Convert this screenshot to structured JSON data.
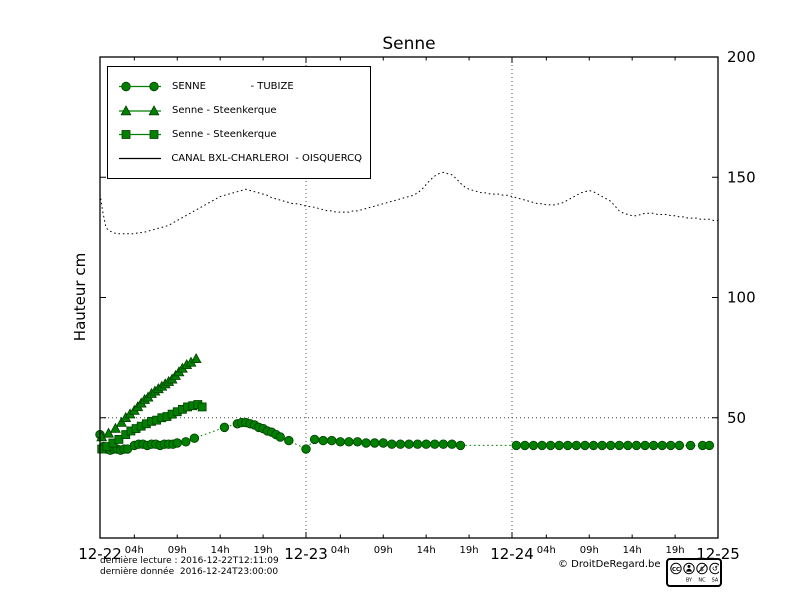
{
  "page": {
    "title": "Senne"
  },
  "chart_data": {
    "type": "line",
    "title": "Senne",
    "xlabel": "",
    "ylabel": "Hauteur cm",
    "x_unit": "hours since 2016-12-22 00:00",
    "xlim": [
      0,
      72
    ],
    "ylim": [
      0,
      200
    ],
    "y_ticks": {
      "values": [
        50,
        100,
        150,
        200
      ],
      "labels": [
        "50",
        "100",
        "150",
        "200"
      ]
    },
    "x_major_ticks": [
      {
        "pos": 0,
        "label": "12-22"
      },
      {
        "pos": 24,
        "label": "12-23"
      },
      {
        "pos": 48,
        "label": "12-24"
      },
      {
        "pos": 72,
        "label": "12-25"
      }
    ],
    "x_minor_ticks": [
      {
        "pos": 4,
        "label": "04h"
      },
      {
        "pos": 9,
        "label": "09h"
      },
      {
        "pos": 14,
        "label": "14h"
      },
      {
        "pos": 19,
        "label": "19h"
      },
      {
        "pos": 28,
        "label": "04h"
      },
      {
        "pos": 33,
        "label": "09h"
      },
      {
        "pos": 38,
        "label": "14h"
      },
      {
        "pos": 43,
        "label": "19h"
      },
      {
        "pos": 52,
        "label": "04h"
      },
      {
        "pos": 57,
        "label": "09h"
      },
      {
        "pos": 62,
        "label": "14h"
      },
      {
        "pos": 67,
        "label": "19h"
      }
    ],
    "grid": {
      "vlines": [
        24,
        48
      ],
      "hlines": [
        50
      ]
    },
    "series": [
      {
        "id": "senne-tubize",
        "name": "SENNE - TUBIZE",
        "marker": "circle",
        "linestyle": "dotted",
        "color": "#007f00",
        "edge": "#004000",
        "points": [
          [
            0,
            43
          ],
          [
            0.4,
            38
          ],
          [
            0.8,
            37
          ],
          [
            1.2,
            36.5
          ],
          [
            1.6,
            37
          ],
          [
            2,
            37
          ],
          [
            2.4,
            36.5
          ],
          [
            2.8,
            37
          ],
          [
            3.2,
            37
          ],
          [
            4,
            38.5
          ],
          [
            4.5,
            39
          ],
          [
            5,
            39
          ],
          [
            5.5,
            38.5
          ],
          [
            6,
            39
          ],
          [
            6.5,
            39
          ],
          [
            7,
            38.5
          ],
          [
            7.5,
            39
          ],
          [
            8,
            39
          ],
          [
            8.5,
            39
          ],
          [
            9,
            39.5
          ],
          [
            10,
            40
          ],
          [
            11,
            41.5
          ],
          [
            14.5,
            46
          ],
          [
            16,
            47.5
          ],
          [
            16.5,
            48
          ],
          [
            17,
            48
          ],
          [
            17.5,
            47.5
          ],
          [
            18,
            47
          ],
          [
            18.5,
            46
          ],
          [
            19,
            45.5
          ],
          [
            19.5,
            44.5
          ],
          [
            20,
            44
          ],
          [
            20.5,
            43
          ],
          [
            21,
            42
          ],
          [
            22,
            40.5
          ],
          [
            24,
            37
          ],
          [
            25,
            41
          ],
          [
            26,
            40.5
          ],
          [
            27,
            40.5
          ],
          [
            28,
            40
          ],
          [
            29,
            40
          ],
          [
            30,
            40
          ],
          [
            31,
            39.5
          ],
          [
            32,
            39.5
          ],
          [
            33,
            39.5
          ],
          [
            34,
            39
          ],
          [
            35,
            39
          ],
          [
            36,
            39
          ],
          [
            37,
            39
          ],
          [
            38,
            39
          ],
          [
            39,
            39
          ],
          [
            40,
            39
          ],
          [
            41,
            39
          ],
          [
            42,
            38.5
          ],
          [
            48.5,
            38.5
          ],
          [
            49.5,
            38.5
          ],
          [
            50.5,
            38.5
          ],
          [
            51.5,
            38.5
          ],
          [
            52.5,
            38.5
          ],
          [
            53.5,
            38.5
          ],
          [
            54.5,
            38.5
          ],
          [
            55.5,
            38.5
          ],
          [
            56.5,
            38.5
          ],
          [
            57.5,
            38.5
          ],
          [
            58.5,
            38.5
          ],
          [
            59.5,
            38.5
          ],
          [
            60.5,
            38.5
          ],
          [
            61.5,
            38.5
          ],
          [
            62.5,
            38.5
          ],
          [
            63.5,
            38.5
          ],
          [
            64.5,
            38.5
          ],
          [
            65.5,
            38.5
          ],
          [
            66.5,
            38.5
          ],
          [
            67.5,
            38.5
          ],
          [
            68.8,
            38.5
          ],
          [
            70.2,
            38.5
          ],
          [
            71,
            38.5
          ]
        ]
      },
      {
        "id": "senne-steenkerque-triangle",
        "name": "Senne - Steenkerque",
        "marker": "triangle",
        "linestyle": "solid",
        "color": "#007f00",
        "edge": "#004000",
        "points": [
          [
            0.2,
            42
          ],
          [
            1,
            43.5
          ],
          [
            1.8,
            45.5
          ],
          [
            2.5,
            48
          ],
          [
            3,
            50
          ],
          [
            3.5,
            51.5
          ],
          [
            4,
            53
          ],
          [
            4.4,
            54.5
          ],
          [
            4.8,
            56
          ],
          [
            5.2,
            57.5
          ],
          [
            5.6,
            58.5
          ],
          [
            6,
            60
          ],
          [
            6.4,
            61
          ],
          [
            6.8,
            62
          ],
          [
            7.2,
            63
          ],
          [
            7.6,
            64
          ],
          [
            8,
            65
          ],
          [
            8.4,
            66
          ],
          [
            8.8,
            67.5
          ],
          [
            9.2,
            69
          ],
          [
            9.6,
            70.5
          ],
          [
            10.1,
            72
          ],
          [
            10.6,
            73
          ],
          [
            11.2,
            74.5
          ]
        ]
      },
      {
        "id": "senne-steenkerque-square",
        "name": "Senne - Steenkerque",
        "marker": "square",
        "linestyle": "solid",
        "color": "#007f00",
        "edge": "#004000",
        "points": [
          [
            0.2,
            37
          ],
          [
            0.8,
            38
          ],
          [
            1.5,
            39.5
          ],
          [
            2.2,
            41
          ],
          [
            3,
            43
          ],
          [
            3.6,
            44.5
          ],
          [
            4.2,
            45.5
          ],
          [
            4.8,
            46.5
          ],
          [
            5.4,
            47.5
          ],
          [
            6,
            48.5
          ],
          [
            6.6,
            49
          ],
          [
            7.2,
            50
          ],
          [
            7.8,
            50.5
          ],
          [
            8.4,
            51.5
          ],
          [
            9,
            52.5
          ],
          [
            9.6,
            53.5
          ],
          [
            10.2,
            54.5
          ],
          [
            10.8,
            55
          ],
          [
            11.4,
            55.5
          ],
          [
            11.9,
            54.5
          ]
        ]
      },
      {
        "id": "canal-bxl-charleroi-oisquercq",
        "name": "CANAL BXL-CHARLEROI - OISQUERCQ",
        "marker": "none",
        "linestyle": "dotted",
        "color": "#000000",
        "edge": "#000000",
        "points": [
          [
            0,
            143
          ],
          [
            0.3,
            136
          ],
          [
            0.7,
            129
          ],
          [
            1,
            128
          ],
          [
            1.5,
            127
          ],
          [
            2,
            126.5
          ],
          [
            2.5,
            126.5
          ],
          [
            3,
            126.5
          ],
          [
            3.5,
            126.5
          ],
          [
            4,
            126.5
          ],
          [
            4.5,
            127
          ],
          [
            5,
            127
          ],
          [
            5.5,
            127.5
          ],
          [
            6,
            128
          ],
          [
            6.5,
            128.5
          ],
          [
            7,
            129
          ],
          [
            7.5,
            129.5
          ],
          [
            8,
            130
          ],
          [
            8.5,
            131
          ],
          [
            9,
            132
          ],
          [
            9.5,
            133
          ],
          [
            10,
            134
          ],
          [
            10.5,
            135
          ],
          [
            11,
            136
          ],
          [
            11.5,
            137
          ],
          [
            12,
            138
          ],
          [
            12.5,
            139
          ],
          [
            13,
            140
          ],
          [
            13.5,
            141
          ],
          [
            14,
            142
          ],
          [
            14.5,
            142.5
          ],
          [
            15,
            143
          ],
          [
            15.5,
            143.5
          ],
          [
            16,
            144
          ],
          [
            16.5,
            144.5
          ],
          [
            17,
            145
          ],
          [
            17.5,
            144.5
          ],
          [
            18,
            144
          ],
          [
            18.5,
            143.5
          ],
          [
            19,
            143
          ],
          [
            19.5,
            142.5
          ],
          [
            20,
            141.5
          ],
          [
            20.5,
            141
          ],
          [
            21,
            140.5
          ],
          [
            21.5,
            140
          ],
          [
            22,
            139.5
          ],
          [
            22.5,
            139
          ],
          [
            23,
            139
          ],
          [
            23.5,
            138.5
          ],
          [
            24,
            138
          ],
          [
            25,
            137.5
          ],
          [
            25.5,
            137
          ],
          [
            26,
            136.5
          ],
          [
            26.5,
            136
          ],
          [
            27,
            136
          ],
          [
            27.5,
            135.5
          ],
          [
            28,
            135.5
          ],
          [
            28.5,
            135.5
          ],
          [
            29,
            135.5
          ],
          [
            29.5,
            136
          ],
          [
            30,
            136
          ],
          [
            30.5,
            136.5
          ],
          [
            31,
            137
          ],
          [
            31.5,
            137.5
          ],
          [
            32,
            138
          ],
          [
            32.5,
            138.5
          ],
          [
            33,
            139
          ],
          [
            33.5,
            139.5
          ],
          [
            34,
            140
          ],
          [
            34.5,
            140.5
          ],
          [
            35,
            141
          ],
          [
            35.5,
            141.5
          ],
          [
            36,
            142
          ],
          [
            36.5,
            142.5
          ],
          [
            37,
            143.5
          ],
          [
            37.5,
            145
          ],
          [
            38,
            147
          ],
          [
            38.5,
            149
          ],
          [
            39,
            150.5
          ],
          [
            39.5,
            151.5
          ],
          [
            40,
            152
          ],
          [
            40.5,
            151.5
          ],
          [
            41,
            151
          ],
          [
            41.5,
            149.5
          ],
          [
            42,
            147.5
          ],
          [
            42.5,
            146
          ],
          [
            43,
            145
          ],
          [
            43.5,
            144.5
          ],
          [
            44,
            144
          ],
          [
            44.5,
            143.5
          ],
          [
            45,
            143.5
          ],
          [
            45.5,
            143
          ],
          [
            46,
            143
          ],
          [
            46.5,
            143
          ],
          [
            47,
            142.5
          ],
          [
            47.5,
            142.5
          ],
          [
            48,
            142
          ],
          [
            48.5,
            141.5
          ],
          [
            49,
            141
          ],
          [
            49.5,
            140.5
          ],
          [
            50,
            140
          ],
          [
            50.5,
            139.5
          ],
          [
            51,
            139
          ],
          [
            51.5,
            139
          ],
          [
            52,
            138.5
          ],
          [
            52.5,
            138.5
          ],
          [
            53,
            138.5
          ],
          [
            53.5,
            139
          ],
          [
            54,
            139.5
          ],
          [
            54.5,
            140.5
          ],
          [
            55,
            141.5
          ],
          [
            55.5,
            142.5
          ],
          [
            56,
            143.5
          ],
          [
            56.5,
            144
          ],
          [
            57,
            144.5
          ],
          [
            57.5,
            144
          ],
          [
            58,
            143
          ],
          [
            58.5,
            142
          ],
          [
            59,
            141
          ],
          [
            59.5,
            140
          ],
          [
            60,
            138
          ],
          [
            60.5,
            136
          ],
          [
            61,
            135
          ],
          [
            61.5,
            134.5
          ],
          [
            62,
            134
          ],
          [
            62.5,
            134
          ],
          [
            63,
            134.5
          ],
          [
            63.5,
            135
          ],
          [
            64,
            135
          ],
          [
            64.5,
            135
          ],
          [
            65,
            134.5
          ],
          [
            65.5,
            134.5
          ],
          [
            66,
            134.5
          ],
          [
            66.5,
            134
          ],
          [
            67,
            134
          ],
          [
            67.5,
            133.5
          ],
          [
            68,
            133.5
          ],
          [
            68.5,
            133
          ],
          [
            69,
            133
          ],
          [
            69.5,
            133
          ],
          [
            70,
            132.5
          ],
          [
            70.5,
            132.5
          ],
          [
            71,
            132.5
          ],
          [
            71.5,
            132
          ],
          [
            72,
            132
          ]
        ]
      }
    ]
  },
  "legend": {
    "items": [
      {
        "label": "SENNE              - TUBIZE"
      },
      {
        "label": "Senne - Steenkerque"
      },
      {
        "label": "Senne - Steenkerque"
      },
      {
        "label": "CANAL BXL-CHARLEROI  - OISQUERCQ"
      }
    ]
  },
  "footer": {
    "line1": "dernière lecture : 2016-12-22T12:11:09",
    "line2": "dernière donnée  2016-12-24T23:00:00",
    "copyright": "© DroitDeRegard.be"
  },
  "cc_badge": {
    "logo_label": "CC",
    "icon_labels": [
      "BY",
      "NC",
      "SA"
    ]
  },
  "colors": {
    "green": "#007f00",
    "black": "#000000",
    "grid": "#444444"
  }
}
